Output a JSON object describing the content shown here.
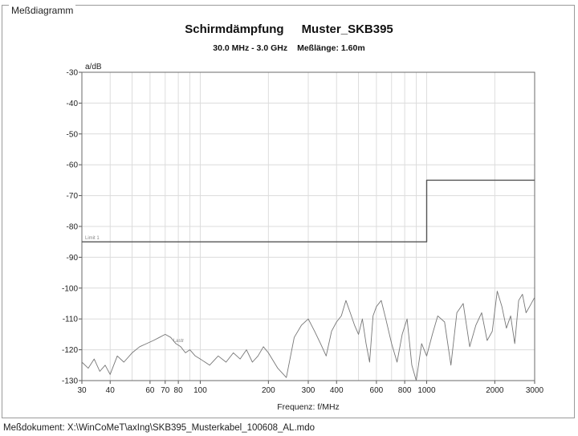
{
  "panel_title": "Meßdiagramm",
  "footer": "Meßdokument: X:\\WinCoMeT\\axIng\\SKB395_Musterkabel_100608_AL.mdo",
  "chart_data": {
    "type": "line",
    "title_part1": "Schirmdämpfung",
    "title_part2": "Muster_SKB395",
    "subtitle_part1": "30.0 MHz - 3.0 GHz",
    "subtitle_part2": "Meßlänge: 1.60m",
    "xlabel": "Frequenz: f/MHz",
    "ylabel": "a/dB",
    "x_scale": "log",
    "xlim": [
      30,
      3000
    ],
    "ylim": [
      -130,
      -30
    ],
    "y_axis_inverted": true,
    "grid": true,
    "x_tick_labels": [
      "30",
      "40",
      "60",
      "70",
      "80",
      "100",
      "200",
      "300",
      "400",
      "600",
      "800",
      "1000",
      "2000",
      "3000"
    ],
    "y_tick_labels": [
      "-30",
      "-40",
      "-50",
      "-60",
      "-70",
      "-80",
      "-90",
      "-100",
      "-110",
      "-120",
      "-130"
    ],
    "series": [
      {
        "name": "Limit 1",
        "color": "#555555",
        "x": [
          30,
          1000,
          1000,
          3000
        ],
        "y": [
          -85,
          -85,
          -65,
          -65
        ]
      },
      {
        "name": "Lastr",
        "color": "#777777",
        "x": [
          30,
          32,
          34,
          36,
          38,
          40,
          43,
          46,
          50,
          54,
          58,
          62,
          66,
          70,
          74,
          78,
          82,
          86,
          90,
          95,
          100,
          110,
          120,
          130,
          140,
          150,
          160,
          170,
          180,
          190,
          200,
          220,
          240,
          260,
          280,
          300,
          320,
          340,
          360,
          380,
          400,
          420,
          440,
          460,
          480,
          500,
          520,
          540,
          560,
          580,
          600,
          630,
          660,
          700,
          740,
          780,
          820,
          860,
          900,
          950,
          1000,
          1060,
          1120,
          1200,
          1280,
          1360,
          1450,
          1550,
          1650,
          1750,
          1850,
          1950,
          2050,
          2150,
          2250,
          2350,
          2450,
          2550,
          2650,
          2750,
          2850,
          3000
        ],
        "y": [
          -124,
          -126,
          -123,
          -127,
          -125,
          -128,
          -122,
          -124,
          -121,
          -119,
          -118,
          -117,
          -116,
          -115,
          -116,
          -118,
          -119,
          -121,
          -120,
          -122,
          -123,
          -125,
          -122,
          -124,
          -121,
          -123,
          -120,
          -124,
          -122,
          -119,
          -121,
          -126,
          -129,
          -116,
          -112,
          -110,
          -114,
          -118,
          -122,
          -114,
          -111,
          -109,
          -104,
          -108,
          -112,
          -115,
          -110,
          -118,
          -124,
          -109,
          -106,
          -104,
          -110,
          -118,
          -124,
          -115,
          -110,
          -125,
          -130,
          -118,
          -122,
          -115,
          -109,
          -111,
          -125,
          -108,
          -105,
          -119,
          -112,
          -108,
          -117,
          -114,
          -101,
          -106,
          -113,
          -109,
          -118,
          -104,
          -102,
          -108,
          -106,
          -103
        ]
      }
    ],
    "annotations": [
      "Limit 1",
      "Lastr"
    ]
  }
}
